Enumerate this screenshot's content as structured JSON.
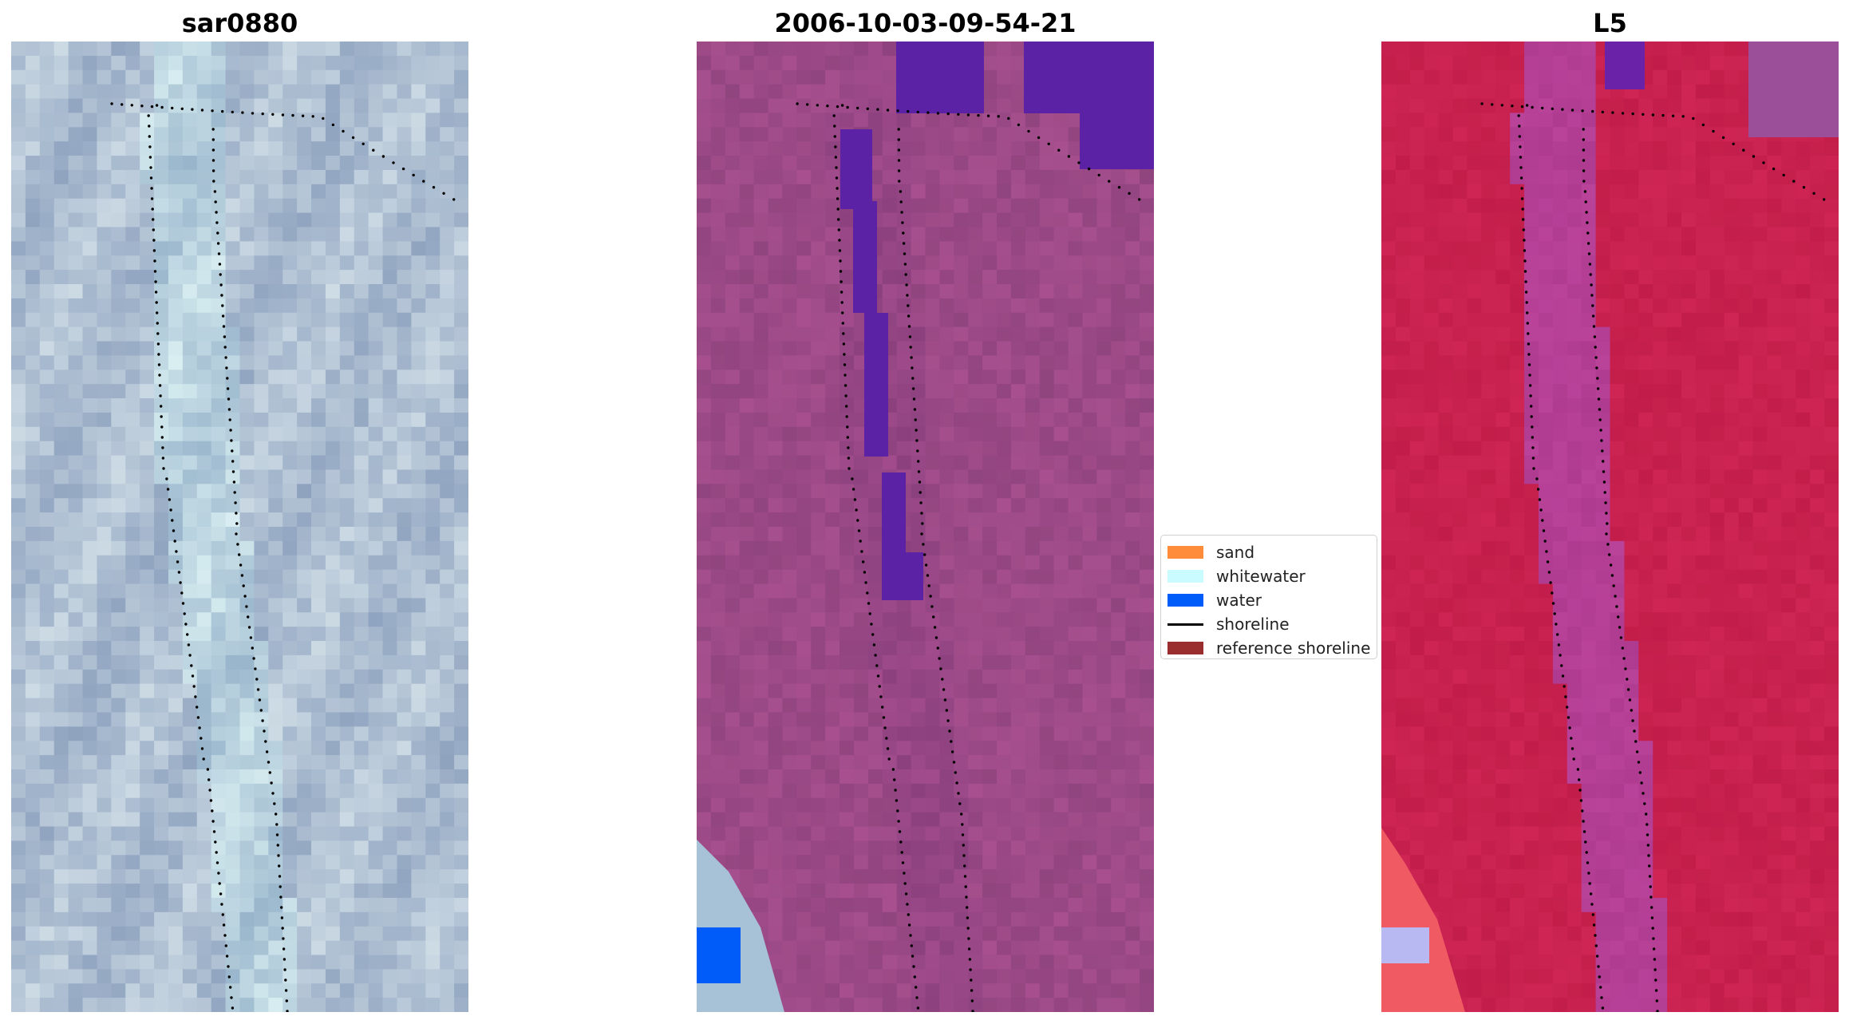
{
  "panels": [
    {
      "title": "sar0880",
      "style": "sar",
      "base": "#aebfd2"
    },
    {
      "title": "2006-10-03-09-54-21",
      "style": "class",
      "base": "#9c4a87"
    },
    {
      "title": "L5",
      "style": "index",
      "base": "#c8214f"
    }
  ],
  "legend": {
    "entries": [
      {
        "label": "sand",
        "type": "patch",
        "color": "#ff8c3a"
      },
      {
        "label": "whitewater",
        "type": "patch",
        "color": "#c9fbff"
      },
      {
        "label": "water",
        "type": "patch",
        "color": "#005cf8"
      },
      {
        "label": "shoreline",
        "type": "line",
        "color": "#000000"
      },
      {
        "label": "reference shoreline",
        "type": "patch",
        "color": "#9a2d2d"
      }
    ]
  },
  "colors": {
    "water_class": "#5b22a6",
    "water": "#005cf8",
    "shoreline_dots": "#000000"
  }
}
